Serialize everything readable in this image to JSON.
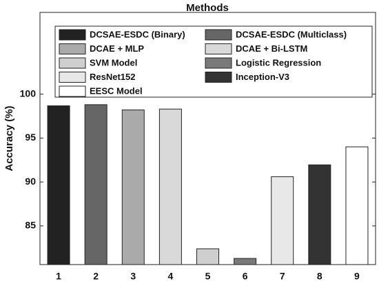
{
  "chart_data": {
    "type": "bar",
    "title": "Methods",
    "ylabel": "Accuracy (%)",
    "categories": [
      "1",
      "2",
      "3",
      "4",
      "5",
      "6",
      "7",
      "8",
      "9"
    ],
    "series": [
      {
        "name": "DCSAE-ESDC (Binary)",
        "color": "#222222",
        "values": [
          98.67,
          null,
          null,
          null,
          null,
          null,
          null,
          null,
          null
        ]
      },
      {
        "name": "DCSAE-ESDC (Multiclass)",
        "color": "#666666",
        "values": [
          null,
          98.8,
          null,
          null,
          null,
          null,
          null,
          null,
          null
        ]
      },
      {
        "name": "DCAE + MLP",
        "color": "#aaaaaa",
        "values": [
          null,
          null,
          98.2,
          null,
          null,
          null,
          null,
          null,
          null
        ]
      },
      {
        "name": "DCAE + Bi-LSTM",
        "color": "#d9d9d9",
        "values": [
          null,
          null,
          null,
          98.3,
          null,
          null,
          null,
          null,
          null
        ]
      },
      {
        "name": "SVM Model",
        "color": "#cfcfcf",
        "values": [
          null,
          null,
          null,
          null,
          82.4,
          null,
          null,
          null,
          null
        ]
      },
      {
        "name": "Logistic Regression",
        "color": "#7a7a7a",
        "values": [
          null,
          null,
          null,
          null,
          null,
          81.3,
          null,
          null,
          null
        ]
      },
      {
        "name": "ResNet152",
        "color": "#e8e8e8",
        "values": [
          null,
          null,
          null,
          null,
          null,
          null,
          90.6,
          null,
          null
        ]
      },
      {
        "name": "Inception-V3",
        "color": "#333333",
        "values": [
          null,
          null,
          null,
          null,
          null,
          null,
          null,
          91.95,
          null
        ]
      },
      {
        "name": "EESC Model",
        "color": "#ffffff",
        "values": [
          null,
          null,
          null,
          null,
          null,
          null,
          null,
          null,
          94.0
        ]
      }
    ],
    "ylim": [
      80.6,
      109.3
    ],
    "yticks": [
      85,
      90,
      95,
      100
    ],
    "grid": false
  }
}
